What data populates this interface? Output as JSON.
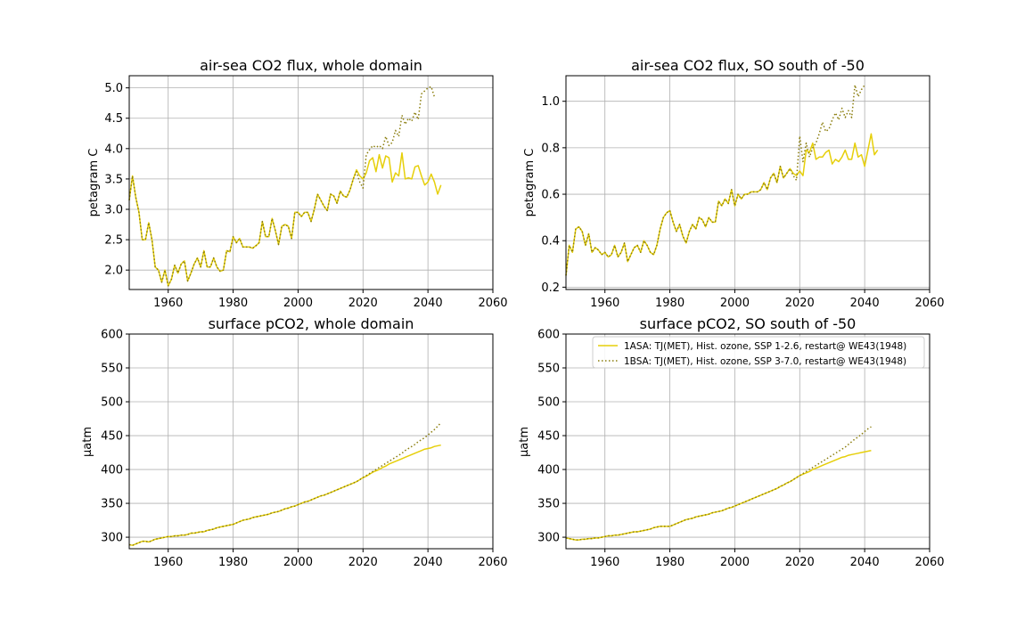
{
  "colors": {
    "series_1ASA": "#e6cf0a",
    "series_1BSA": "#8a7d0c",
    "grid": "#b0b0b0"
  },
  "legend": {
    "placement": "top-right of bottom-right panel",
    "entries": [
      "1ASA: TJ(MET), Hist. ozone, SSP 1-2.6, restart@ WE43(1948)",
      "1BSA: TJ(MET), Hist. ozone, SSP 3-7.0, restart@ WE43(1948)"
    ]
  },
  "chart_data": [
    {
      "type": "line",
      "title": "air-sea CO2 flux, whole domain",
      "xlabel": "",
      "ylabel": "petagram C",
      "xlim": [
        1948,
        2060
      ],
      "ylim": [
        1.68,
        5.2
      ],
      "xticks": [
        1960,
        1980,
        2000,
        2020,
        2040,
        2060
      ],
      "yticks": [
        2.0,
        2.5,
        3.0,
        3.5,
        4.0,
        4.5,
        5.0
      ],
      "ytick_decimals": 1,
      "grid": true,
      "x_start": 1948,
      "series": [
        {
          "name": "1ASA: TJ(MET), Hist. ozone, SSP 1-2.6, restart@ WE43(1948)",
          "style": "solid",
          "values": [
            3.15,
            3.55,
            3.2,
            2.95,
            2.5,
            2.5,
            2.78,
            2.5,
            2.05,
            2.0,
            1.8,
            2.0,
            1.74,
            1.85,
            2.08,
            1.95,
            2.1,
            2.15,
            1.82,
            1.95,
            2.1,
            2.2,
            2.05,
            2.32,
            2.05,
            2.05,
            2.2,
            2.05,
            1.98,
            2.0,
            2.32,
            2.3,
            2.55,
            2.45,
            2.52,
            2.38,
            2.38,
            2.38,
            2.36,
            2.4,
            2.45,
            2.8,
            2.55,
            2.55,
            2.85,
            2.65,
            2.42,
            2.72,
            2.75,
            2.72,
            2.52,
            2.95,
            2.95,
            2.88,
            2.95,
            2.95,
            2.8,
            3.0,
            3.25,
            3.15,
            3.05,
            2.98,
            3.25,
            3.22,
            3.1,
            3.3,
            3.22,
            3.2,
            3.32,
            3.5,
            3.65,
            3.55,
            3.5,
            3.6,
            3.8,
            3.85,
            3.62,
            3.9,
            3.68,
            3.88,
            3.85,
            3.45,
            3.6,
            3.55,
            3.93,
            3.5,
            3.52,
            3.5,
            3.7,
            3.72,
            3.55,
            3.4,
            3.45,
            3.58,
            3.45,
            3.25,
            3.4
          ]
        },
        {
          "name": "1BSA: TJ(MET), Hist. ozone, SSP 3-7.0, restart@ WE43(1948)",
          "style": "dotted",
          "values": [
            3.15,
            3.55,
            3.2,
            2.95,
            2.5,
            2.5,
            2.78,
            2.5,
            2.05,
            2.0,
            1.8,
            2.0,
            1.74,
            1.85,
            2.08,
            1.95,
            2.1,
            2.15,
            1.82,
            1.95,
            2.1,
            2.2,
            2.05,
            2.32,
            2.05,
            2.05,
            2.2,
            2.05,
            1.98,
            2.0,
            2.32,
            2.3,
            2.55,
            2.45,
            2.52,
            2.38,
            2.38,
            2.38,
            2.36,
            2.4,
            2.45,
            2.8,
            2.55,
            2.55,
            2.85,
            2.65,
            2.42,
            2.72,
            2.75,
            2.72,
            2.52,
            2.95,
            2.95,
            2.88,
            2.95,
            2.95,
            2.8,
            3.0,
            3.25,
            3.15,
            3.05,
            2.98,
            3.25,
            3.22,
            3.1,
            3.3,
            3.22,
            3.2,
            3.32,
            3.5,
            3.62,
            3.45,
            3.35,
            3.9,
            3.98,
            4.05,
            4.02,
            4.05,
            4.0,
            4.2,
            4.05,
            4.1,
            4.3,
            4.2,
            4.55,
            4.4,
            4.5,
            4.45,
            4.6,
            4.48,
            4.9,
            4.95,
            5.0,
            5.02,
            4.85
          ]
        }
      ]
    },
    {
      "type": "line",
      "title": "air-sea CO2 flux, SO south of -50",
      "xlabel": "",
      "ylabel": "petagram C",
      "xlim": [
        1948,
        2060
      ],
      "ylim": [
        0.19,
        1.11
      ],
      "xticks": [
        1960,
        1980,
        2000,
        2020,
        2040,
        2060
      ],
      "yticks": [
        0.2,
        0.4,
        0.6,
        0.8,
        1.0
      ],
      "ytick_decimals": 1,
      "grid": true,
      "x_start": 1948,
      "series": [
        {
          "name": "1ASA: TJ(MET), Hist. ozone, SSP 1-2.6, restart@ WE43(1948)",
          "style": "solid",
          "values": [
            0.25,
            0.38,
            0.35,
            0.45,
            0.46,
            0.44,
            0.38,
            0.43,
            0.35,
            0.37,
            0.36,
            0.34,
            0.35,
            0.33,
            0.34,
            0.38,
            0.33,
            0.35,
            0.39,
            0.31,
            0.34,
            0.37,
            0.38,
            0.35,
            0.4,
            0.38,
            0.35,
            0.34,
            0.38,
            0.45,
            0.5,
            0.52,
            0.53,
            0.48,
            0.44,
            0.47,
            0.42,
            0.39,
            0.44,
            0.47,
            0.45,
            0.5,
            0.49,
            0.46,
            0.5,
            0.48,
            0.48,
            0.57,
            0.55,
            0.58,
            0.56,
            0.62,
            0.55,
            0.6,
            0.58,
            0.6,
            0.6,
            0.61,
            0.61,
            0.61,
            0.62,
            0.65,
            0.62,
            0.67,
            0.69,
            0.65,
            0.72,
            0.67,
            0.69,
            0.71,
            0.69,
            0.68,
            0.7,
            0.68,
            0.79,
            0.78,
            0.82,
            0.75,
            0.76,
            0.76,
            0.78,
            0.79,
            0.73,
            0.75,
            0.74,
            0.76,
            0.79,
            0.75,
            0.75,
            0.82,
            0.76,
            0.77,
            0.72,
            0.79,
            0.86,
            0.77,
            0.79
          ]
        },
        {
          "name": "1BSA: TJ(MET), Hist. ozone, SSP 3-7.0, restart@ WE43(1948)",
          "style": "dotted",
          "values": [
            0.25,
            0.38,
            0.35,
            0.45,
            0.46,
            0.44,
            0.38,
            0.43,
            0.35,
            0.37,
            0.36,
            0.34,
            0.35,
            0.33,
            0.34,
            0.38,
            0.33,
            0.35,
            0.39,
            0.31,
            0.34,
            0.37,
            0.38,
            0.35,
            0.4,
            0.38,
            0.35,
            0.34,
            0.38,
            0.45,
            0.5,
            0.52,
            0.53,
            0.48,
            0.44,
            0.47,
            0.42,
            0.39,
            0.44,
            0.47,
            0.45,
            0.5,
            0.49,
            0.46,
            0.5,
            0.48,
            0.48,
            0.57,
            0.55,
            0.58,
            0.56,
            0.62,
            0.55,
            0.6,
            0.58,
            0.6,
            0.6,
            0.61,
            0.61,
            0.61,
            0.62,
            0.65,
            0.62,
            0.67,
            0.69,
            0.65,
            0.72,
            0.67,
            0.69,
            0.71,
            0.68,
            0.66,
            0.85,
            0.74,
            0.82,
            0.76,
            0.8,
            0.82,
            0.86,
            0.91,
            0.87,
            0.88,
            0.92,
            0.95,
            0.92,
            0.97,
            0.93,
            0.96,
            0.93,
            1.07,
            1.02,
            1.05,
            1.07
          ]
        }
      ]
    },
    {
      "type": "line",
      "title": "surface pCO2, whole domain",
      "xlabel": "",
      "ylabel": "μatm",
      "xlim": [
        1948,
        2060
      ],
      "ylim": [
        283,
        600
      ],
      "xticks": [
        1960,
        1980,
        2000,
        2020,
        2040,
        2060
      ],
      "yticks": [
        300,
        350,
        400,
        450,
        500,
        550,
        600
      ],
      "ytick_decimals": 0,
      "grid": true,
      "x_start": 1948,
      "series": [
        {
          "name": "1ASA: TJ(MET), Hist. ozone, SSP 1-2.6, restart@ WE43(1948)",
          "style": "solid",
          "values": [
            289,
            288,
            290,
            292,
            294,
            294,
            293,
            295,
            297,
            298,
            299,
            300,
            301,
            301,
            302,
            302,
            303,
            303,
            304,
            306,
            306,
            307,
            308,
            308,
            310,
            311,
            312,
            314,
            315,
            316,
            317,
            318,
            319,
            321,
            323,
            325,
            326,
            327,
            329,
            330,
            331,
            332,
            333,
            334,
            336,
            337,
            338,
            340,
            342,
            343,
            345,
            346,
            348,
            350,
            352,
            353,
            355,
            357,
            359,
            361,
            362,
            364,
            366,
            368,
            370,
            372,
            374,
            376,
            378,
            380,
            382,
            385,
            388,
            390,
            393,
            396,
            398,
            400,
            403,
            405,
            408,
            410,
            412,
            414,
            416,
            418,
            420,
            422,
            424,
            426,
            428,
            430,
            431,
            432,
            434,
            435,
            436
          ]
        },
        {
          "name": "1BSA: TJ(MET), Hist. ozone, SSP 3-7.0, restart@ WE43(1948)",
          "style": "dotted",
          "values": [
            289,
            288,
            290,
            292,
            294,
            294,
            293,
            295,
            297,
            298,
            299,
            300,
            301,
            301,
            302,
            302,
            303,
            303,
            304,
            306,
            306,
            307,
            308,
            308,
            310,
            311,
            312,
            314,
            315,
            316,
            317,
            318,
            319,
            321,
            323,
            325,
            326,
            327,
            329,
            330,
            331,
            332,
            333,
            334,
            336,
            337,
            338,
            340,
            342,
            343,
            345,
            346,
            348,
            350,
            352,
            353,
            355,
            357,
            359,
            361,
            362,
            364,
            366,
            368,
            370,
            372,
            374,
            376,
            378,
            380,
            382,
            385,
            388,
            391,
            394,
            397,
            400,
            403,
            406,
            409,
            412,
            415,
            418,
            421,
            424,
            428,
            431,
            434,
            437,
            441,
            444,
            447,
            451,
            455,
            459,
            464,
            469
          ]
        }
      ]
    },
    {
      "type": "line",
      "title": "surface pCO2, SO south of -50",
      "xlabel": "",
      "ylabel": "μatm",
      "xlim": [
        1948,
        2060
      ],
      "ylim": [
        283,
        600
      ],
      "xticks": [
        1960,
        1980,
        2000,
        2020,
        2040,
        2060
      ],
      "yticks": [
        300,
        350,
        400,
        450,
        500,
        550,
        600
      ],
      "ytick_decimals": 0,
      "grid": true,
      "x_start": 1948,
      "series": [
        {
          "name": "1ASA: TJ(MET), Hist. ozone, SSP 1-2.6, restart@ WE43(1948)",
          "style": "solid",
          "values": [
            299,
            298,
            297,
            296,
            296,
            297,
            297,
            298,
            298,
            299,
            299,
            300,
            301,
            302,
            302,
            303,
            303,
            304,
            305,
            306,
            307,
            308,
            308,
            309,
            310,
            311,
            312,
            314,
            315,
            316,
            316,
            316,
            316,
            318,
            320,
            322,
            324,
            326,
            327,
            328,
            330,
            331,
            332,
            333,
            334,
            336,
            337,
            338,
            339,
            341,
            343,
            344,
            346,
            348,
            350,
            352,
            354,
            356,
            358,
            360,
            362,
            364,
            366,
            368,
            370,
            372,
            375,
            377,
            380,
            382,
            385,
            388,
            391,
            393,
            395,
            397,
            400,
            402,
            404,
            406,
            408,
            410,
            412,
            414,
            416,
            418,
            419,
            421,
            422,
            423,
            424,
            425,
            426,
            427,
            428
          ]
        },
        {
          "name": "1BSA: TJ(MET), Hist. ozone, SSP 3-7.0, restart@ WE43(1948)",
          "style": "dotted",
          "values": [
            299,
            298,
            297,
            296,
            296,
            297,
            297,
            298,
            298,
            299,
            299,
            300,
            301,
            302,
            302,
            303,
            303,
            304,
            305,
            306,
            307,
            308,
            308,
            309,
            310,
            311,
            312,
            314,
            315,
            316,
            316,
            316,
            316,
            318,
            320,
            322,
            324,
            326,
            327,
            328,
            330,
            331,
            332,
            333,
            334,
            336,
            337,
            338,
            339,
            341,
            343,
            344,
            346,
            348,
            350,
            352,
            354,
            356,
            358,
            360,
            362,
            364,
            366,
            368,
            370,
            372,
            375,
            377,
            380,
            382,
            385,
            388,
            391,
            394,
            397,
            400,
            403,
            406,
            409,
            412,
            415,
            418,
            421,
            424,
            427,
            430,
            433,
            437,
            441,
            445,
            448,
            452,
            456,
            460,
            463
          ]
        }
      ]
    }
  ]
}
